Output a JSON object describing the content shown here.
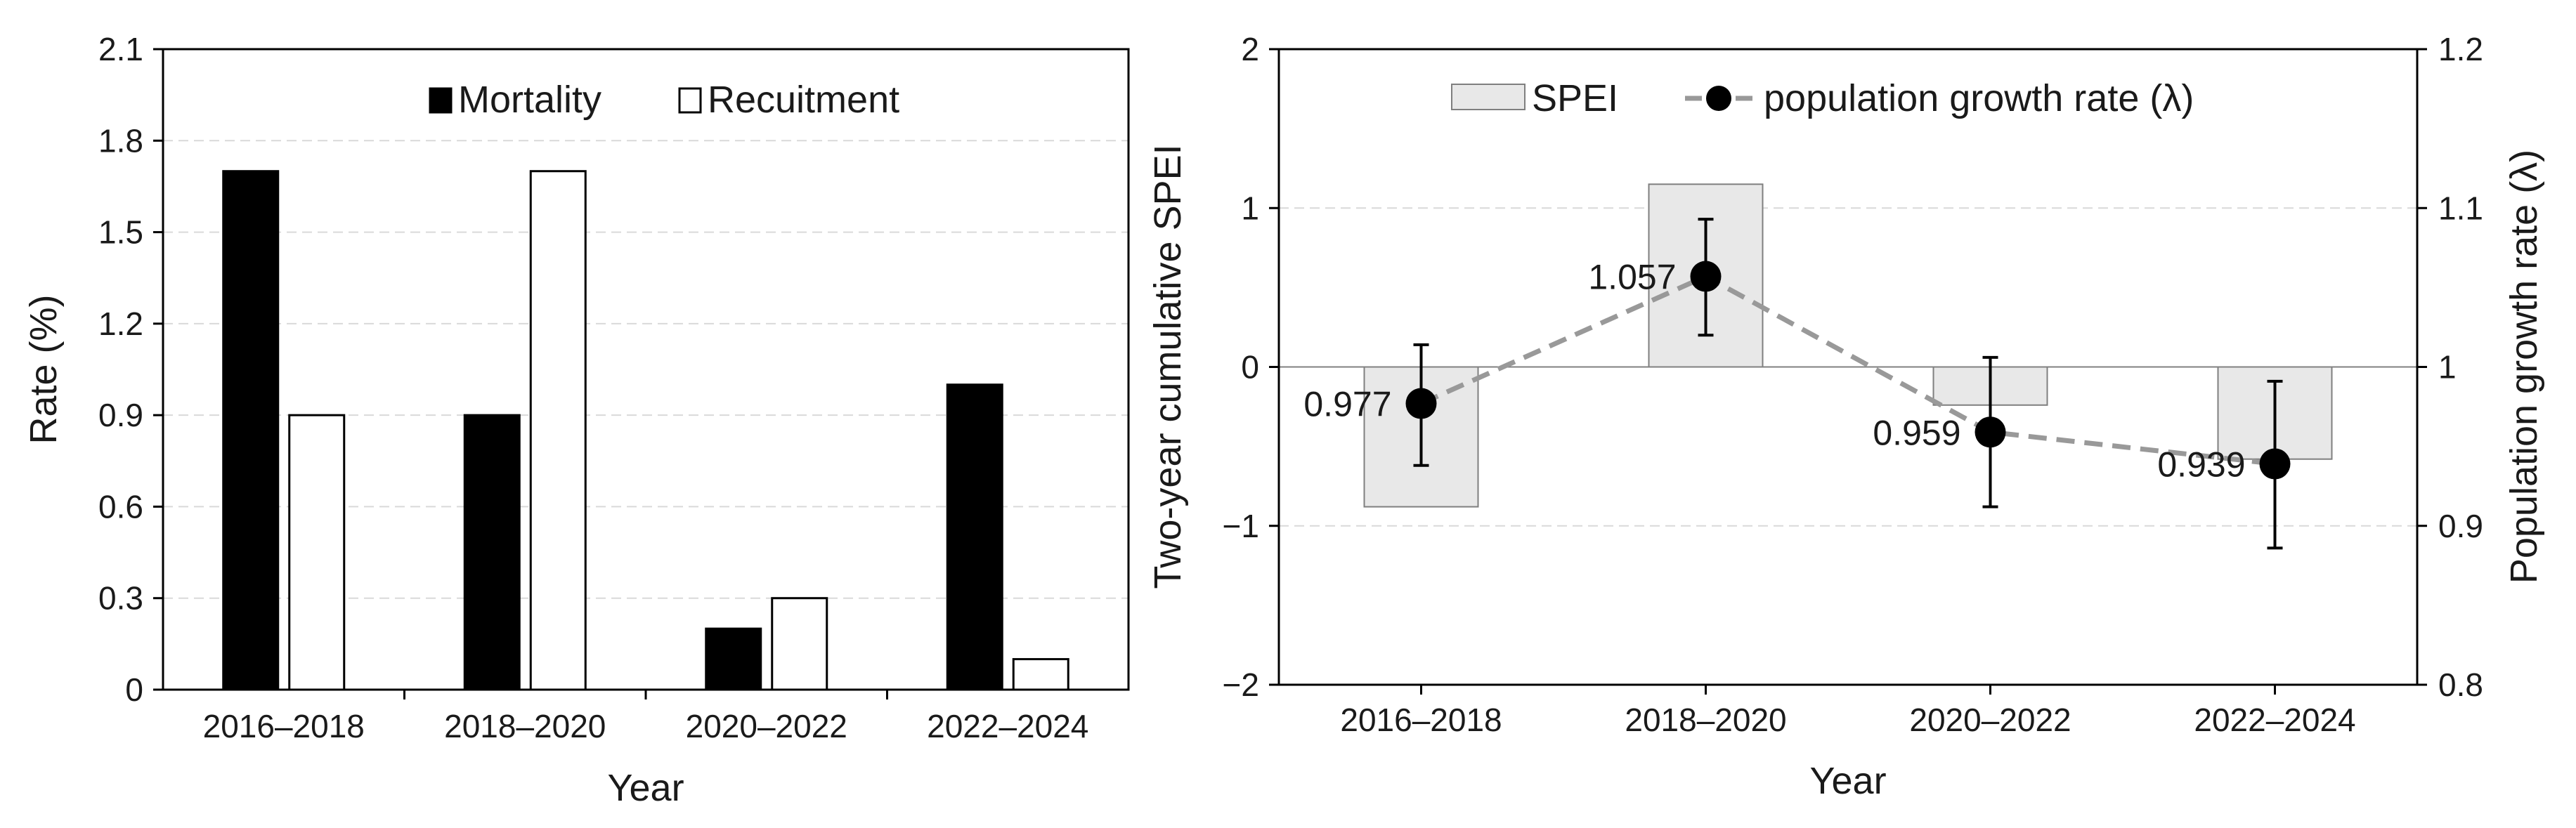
{
  "chart_data": [
    {
      "type": "bar",
      "categories": [
        "2016–2018",
        "2018–2020",
        "2020–2022",
        "2022–2024"
      ],
      "series": [
        {
          "name": "Mortality",
          "values": [
            1.7,
            0.9,
            0.2,
            1.0
          ],
          "color": "#000000"
        },
        {
          "name": "Recuitment",
          "values": [
            0.9,
            1.7,
            0.3,
            0.1
          ],
          "color": "#ffffff"
        }
      ],
      "xlabel": "Year",
      "ylabel": "Rate (%)",
      "ylim": [
        0,
        2.1
      ],
      "yticks": [
        "0",
        "0.3",
        "0.6",
        "0.9",
        "1.2",
        "1.5",
        "1.8",
        "2.1"
      ],
      "legend": "top-center",
      "grid": true
    },
    {
      "type": "bar+line",
      "categories": [
        "2016–2018",
        "2018–2020",
        "2020–2022",
        "2022–2024"
      ],
      "bars": {
        "name": "SPEI",
        "values": [
          -0.88,
          1.15,
          -0.24,
          -0.58
        ],
        "color": "#e8e8e8"
      },
      "line": {
        "name": "population growth rate (λ)",
        "values": [
          0.977,
          1.057,
          0.959,
          0.939
        ],
        "err_low": [
          0.938,
          1.02,
          0.912,
          0.886
        ],
        "err_high": [
          1.014,
          1.093,
          1.006,
          0.991
        ],
        "labels": [
          "0.977",
          "1.057",
          "0.959",
          "0.939"
        ],
        "color": "#000000",
        "line_color": "#999999"
      },
      "xlabel": "Year",
      "ylabel_left": "Two-year cumulative SPEI",
      "ylabel_right": "Population growth rate (λ)",
      "ylim_left": [
        -2,
        2
      ],
      "ylim_right": [
        0.8,
        1.2
      ],
      "yticks_left": [
        "−2",
        "−1",
        "0",
        "1",
        "2"
      ],
      "yticks_right": [
        "0.8",
        "0.9",
        "1",
        "1.1",
        "1.2"
      ],
      "legend": "top-center",
      "grid": true
    }
  ]
}
